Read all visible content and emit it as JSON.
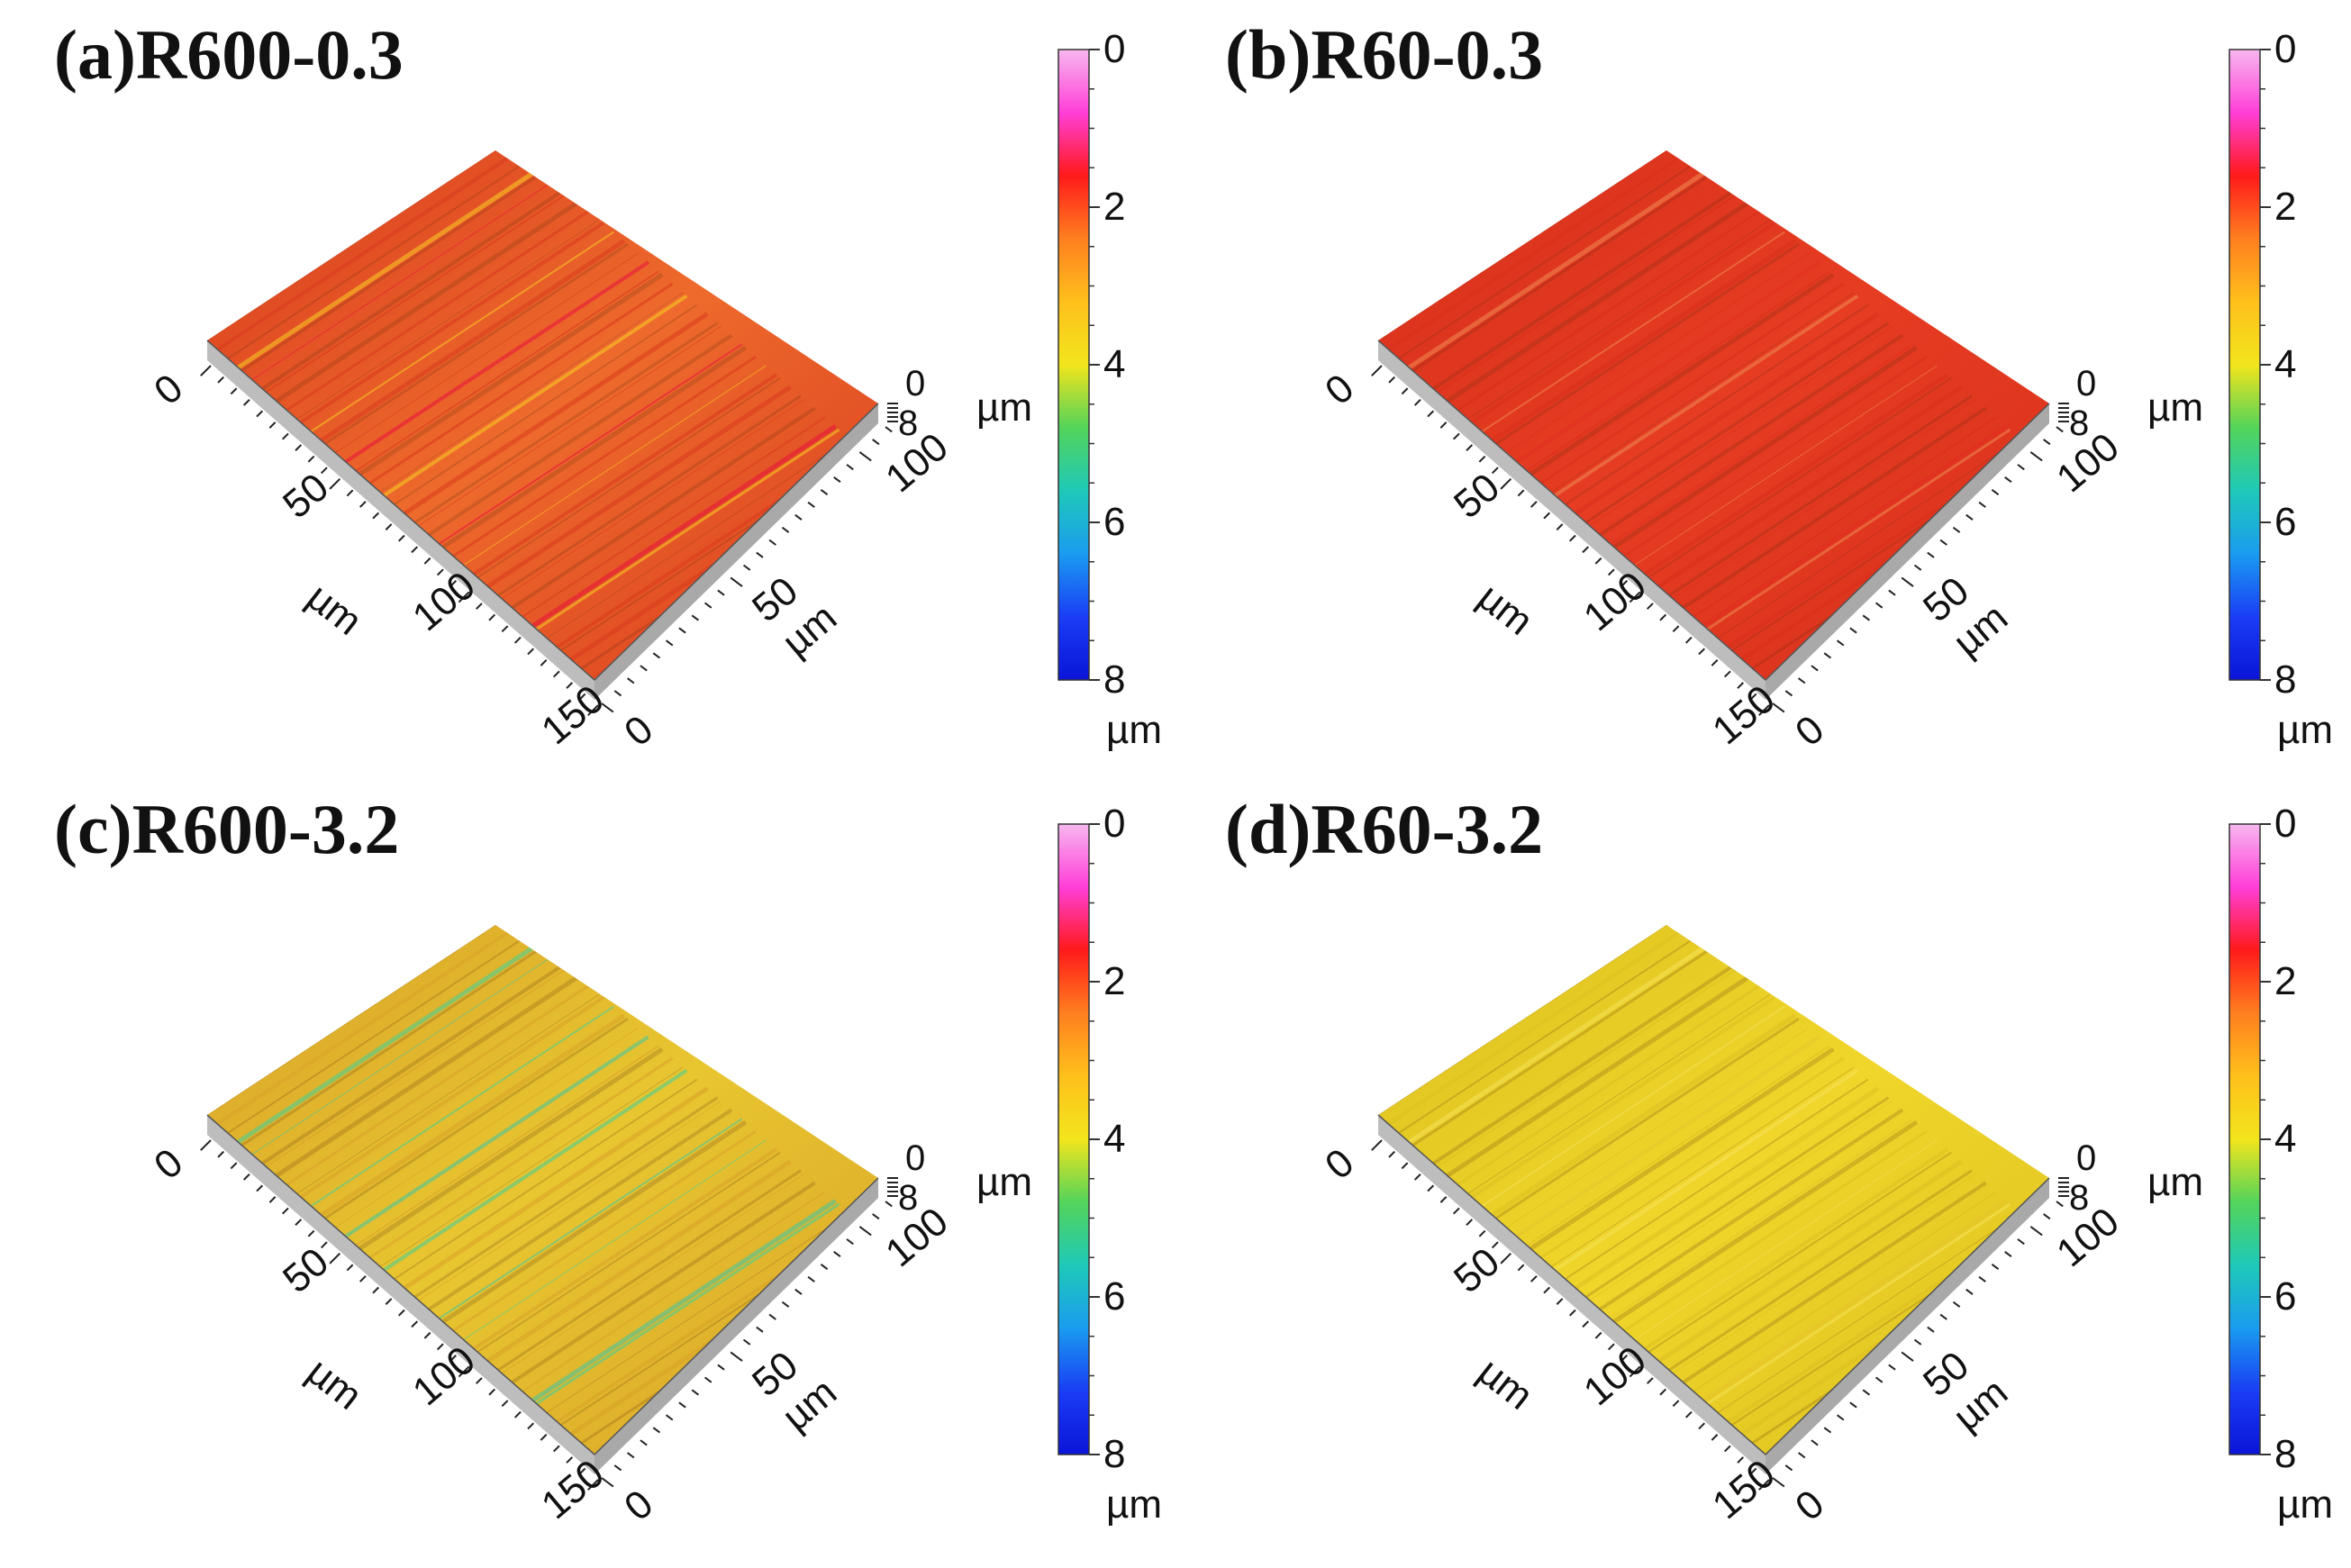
{
  "figure": {
    "panels": [
      {
        "label": "(a)R600-0.3",
        "surface": "mixed-orange-red",
        "base": "#ee6a2c",
        "alt": "#d93b1e",
        "stripe": "#f7cf25",
        "hot": "#e8103c"
      },
      {
        "label": "(b)R60-0.3",
        "surface": "uniform-red",
        "base": "#e63c22",
        "alt": "#d8301b",
        "stripe": "#ef8a52",
        "hot": "#e23020"
      },
      {
        "label": "(c)R600-3.2",
        "surface": "yellow-green",
        "base": "#e8c630",
        "alt": "#d9a228",
        "stripe": "#3fcf9a",
        "hot": "#3cc7a4"
      },
      {
        "label": "(d)R60-3.2",
        "surface": "uniform-yellow",
        "base": "#f0d62a",
        "alt": "#dcc020",
        "stripe": "#f5e25a",
        "hot": "#e6c52a"
      }
    ],
    "colorbar": {
      "ticks": [
        "0",
        "2",
        "4",
        "6",
        "8"
      ],
      "unit": "µm",
      "range": [
        0,
        8
      ],
      "colors": [
        "#f7b7ef",
        "#ff3fd8",
        "#ff1a1a",
        "#ff7f1f",
        "#ffc01c",
        "#f2e51c",
        "#53d45a",
        "#1fc9b8",
        "#1a9cf0",
        "#1a3df5",
        "#0a14d8"
      ]
    },
    "x_axis": {
      "ticks": [
        "0",
        "50",
        "100",
        "150"
      ],
      "label": "µm",
      "range": [
        0,
        150
      ]
    },
    "y_axis": {
      "ticks": [
        "0",
        "50",
        "100"
      ],
      "label": "µm",
      "range": [
        0,
        110
      ]
    },
    "z_axis": {
      "ticks": [
        "0",
        "8"
      ],
      "label": "µm"
    }
  }
}
